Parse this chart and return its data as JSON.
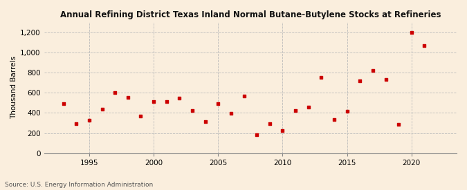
{
  "title": "Annual Refining District Texas Inland Normal Butane-Butylene Stocks at Refineries",
  "ylabel": "Thousand Barrels",
  "source": "Source: U.S. Energy Information Administration",
  "background_color": "#faeedd",
  "marker_color": "#cc0000",
  "years": [
    1993,
    1994,
    1995,
    1996,
    1997,
    1998,
    1999,
    2000,
    2001,
    2002,
    2003,
    2004,
    2005,
    2006,
    2007,
    2008,
    2009,
    2010,
    2011,
    2012,
    2013,
    2014,
    2015,
    2016,
    2017,
    2018,
    2019,
    2020,
    2021
  ],
  "values": [
    490,
    290,
    325,
    435,
    600,
    550,
    370,
    510,
    515,
    545,
    420,
    315,
    490,
    395,
    570,
    180,
    295,
    225,
    420,
    460,
    750,
    335,
    415,
    715,
    820,
    730,
    285,
    1200,
    1070
  ],
  "ylim": [
    0,
    1300
  ],
  "yticks": [
    0,
    200,
    400,
    600,
    800,
    1000,
    1200
  ],
  "ytick_labels": [
    "0",
    "200",
    "400",
    "600",
    "800",
    "1,000",
    "1,200"
  ],
  "xlim": [
    1991.5,
    2023.5
  ],
  "xticks": [
    1995,
    2000,
    2005,
    2010,
    2015,
    2020
  ],
  "title_fontsize": 8.5,
  "tick_fontsize": 7.5,
  "ylabel_fontsize": 7.5,
  "source_fontsize": 6.5
}
